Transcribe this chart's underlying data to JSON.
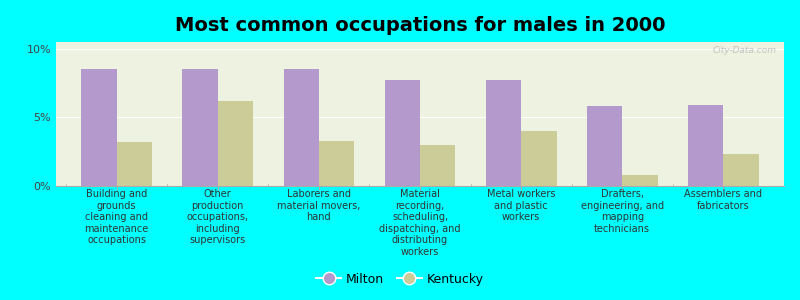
{
  "title": "Most common occupations for males in 2000",
  "categories": [
    "Building and\ngrounds\ncleaning and\nmaintenance\noccupations",
    "Other\nproduction\noccupations,\nincluding\nsupervisors",
    "Laborers and\nmaterial movers,\nhand",
    "Material\nrecording,\nscheduling,\ndispatching, and\ndistributing\nworkers",
    "Metal workers\nand plastic\nworkers",
    "Drafters,\nengineering, and\nmapping\ntechnicians",
    "Assemblers and\nfabricators"
  ],
  "milton_values": [
    8.5,
    8.5,
    8.5,
    7.7,
    7.7,
    5.8,
    5.9
  ],
  "kentucky_values": [
    3.2,
    6.2,
    3.3,
    3.0,
    4.0,
    0.8,
    2.3
  ],
  "milton_color": "#b399cc",
  "kentucky_color": "#cccc99",
  "background_color": "#00ffff",
  "plot_bg_color": "#eef2e0",
  "ylim": [
    0,
    10.5
  ],
  "yticks": [
    0,
    5,
    10
  ],
  "ytick_labels": [
    "0%",
    "5%",
    "10%"
  ],
  "bar_width": 0.35,
  "legend_labels": [
    "Milton",
    "Kentucky"
  ],
  "watermark": "City-Data.com",
  "title_fontsize": 14,
  "label_fontsize": 7,
  "tick_fontsize": 8
}
